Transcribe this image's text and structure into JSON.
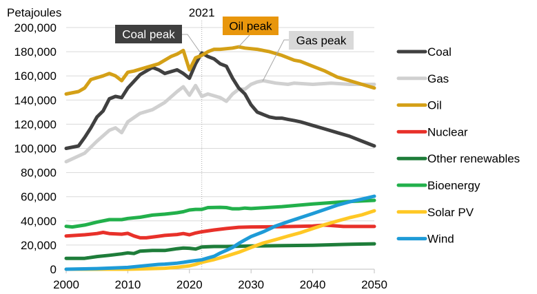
{
  "chart_data": {
    "type": "line",
    "title": "",
    "ylabel": "Petajoules",
    "xlabel": "",
    "xlim": [
      2000,
      2050
    ],
    "ylim": [
      0,
      200000
    ],
    "grid": "horizontal",
    "legend_position": "right",
    "x_ticks": [
      2000,
      2010,
      2020,
      2030,
      2040,
      2050
    ],
    "x_tick_labels": [
      "2000",
      "2010",
      "2020",
      "2030",
      "2040",
      "2050"
    ],
    "y_ticks": [
      0,
      20000,
      40000,
      60000,
      80000,
      100000,
      120000,
      140000,
      160000,
      180000,
      200000
    ],
    "y_tick_labels": [
      "0",
      "20,000",
      "40,000",
      "60,000",
      "80,000",
      "100,000",
      "120,000",
      "140,000",
      "160,000",
      "180,000",
      "200,000"
    ],
    "reference_line": {
      "x": 2022,
      "label": "2021",
      "style": "dotted"
    },
    "annotations": [
      {
        "label": "Coal peak",
        "series": "Coal",
        "x": 2022,
        "y": 179000,
        "box_color": "#3F3F3F",
        "text_color": "#FFFFFF"
      },
      {
        "label": "Oil peak",
        "series": "Oil",
        "x": 2028,
        "y": 184000,
        "box_color": "#E8960C",
        "text_color": "#000000"
      },
      {
        "label": "Gas peak",
        "series": "Gas",
        "x": 2031.5,
        "y": 155000,
        "box_color": "#D9D9D9",
        "text_color": "#000000"
      }
    ],
    "series": [
      {
        "name": "Coal",
        "color": "#404040",
        "x": [
          2000,
          2002,
          2003,
          2004,
          2005,
          2006,
          2007,
          2008,
          2009,
          2010,
          2012,
          2014,
          2015,
          2016,
          2018,
          2019,
          2020,
          2021,
          2022,
          2023,
          2024,
          2025,
          2026,
          2027,
          2028,
          2029,
          2030,
          2031,
          2032,
          2033,
          2034,
          2035,
          2036,
          2037,
          2038,
          2040,
          2042,
          2044,
          2046,
          2048,
          2050
        ],
        "values": [
          100000,
          102000,
          109000,
          117000,
          126000,
          131000,
          141000,
          143000,
          142000,
          150000,
          161000,
          167000,
          165000,
          162000,
          165000,
          162000,
          158000,
          170000,
          179000,
          176000,
          174000,
          170000,
          168000,
          158000,
          150000,
          145000,
          136000,
          130000,
          128000,
          126000,
          125000,
          125000,
          124000,
          123000,
          122000,
          119000,
          116000,
          113000,
          110000,
          106000,
          102000
        ]
      },
      {
        "name": "Gas",
        "color": "#D0D0D0",
        "x": [
          2000,
          2003,
          2005,
          2007,
          2008,
          2009,
          2010,
          2012,
          2014,
          2016,
          2018,
          2019,
          2020,
          2021,
          2022,
          2023,
          2025,
          2026,
          2027,
          2028,
          2029,
          2030,
          2031,
          2032,
          2034,
          2036,
          2037,
          2040,
          2043,
          2046,
          2050
        ],
        "values": [
          89000,
          96000,
          106000,
          115000,
          117000,
          113000,
          122000,
          129000,
          132000,
          138000,
          147000,
          151000,
          144000,
          152000,
          143000,
          145000,
          142000,
          139000,
          145000,
          149000,
          149000,
          153000,
          155000,
          156000,
          154000,
          153000,
          154000,
          153000,
          154000,
          153000,
          153000
        ]
      },
      {
        "name": "Oil",
        "color": "#D4A017",
        "x": [
          2000,
          2002,
          2003,
          2004,
          2006,
          2007,
          2008,
          2009,
          2010,
          2011,
          2013,
          2015,
          2017,
          2018,
          2019,
          2020,
          2021,
          2022,
          2023,
          2024,
          2025,
          2027,
          2028,
          2029,
          2031,
          2033,
          2035,
          2037,
          2038,
          2040,
          2042,
          2044,
          2046,
          2048,
          2050
        ],
        "values": [
          145000,
          147000,
          150000,
          157000,
          160000,
          162000,
          160000,
          156000,
          163000,
          164000,
          167000,
          170000,
          176000,
          178000,
          181000,
          165000,
          175000,
          177000,
          180000,
          182000,
          182000,
          183000,
          184000,
          183000,
          182000,
          180000,
          177000,
          173000,
          172000,
          168000,
          164000,
          159000,
          156000,
          153000,
          150000
        ]
      },
      {
        "name": "Nuclear",
        "color": "#E8312A",
        "x": [
          2000,
          2003,
          2005,
          2006,
          2007,
          2009,
          2010,
          2011,
          2012,
          2013,
          2015,
          2016,
          2018,
          2019,
          2020,
          2021,
          2022,
          2024,
          2026,
          2028,
          2030,
          2035,
          2040,
          2042,
          2045,
          2050
        ],
        "values": [
          27500,
          28500,
          29500,
          30500,
          29500,
          29000,
          29700,
          27500,
          26000,
          26000,
          27300,
          28000,
          28700,
          29500,
          28500,
          30000,
          31000,
          32500,
          33700,
          34700,
          35000,
          35200,
          35800,
          36500,
          35400,
          35400
        ]
      },
      {
        "name": "Other renewables",
        "color": "#1E7D3A",
        "x": [
          2000,
          2003,
          2005,
          2007,
          2009,
          2010,
          2011,
          2012,
          2014,
          2016,
          2018,
          2019,
          2020,
          2021,
          2022,
          2024,
          2026,
          2030,
          2035,
          2040,
          2045,
          2050
        ],
        "values": [
          9000,
          9000,
          10500,
          11500,
          12700,
          13500,
          13000,
          15000,
          15500,
          15500,
          17000,
          17500,
          17300,
          16700,
          18400,
          18800,
          18800,
          19200,
          19500,
          19800,
          20500,
          21000
        ]
      },
      {
        "name": "Bioenergy",
        "color": "#22B04B",
        "x": [
          2000,
          2001,
          2003,
          2005,
          2007,
          2009,
          2010,
          2012,
          2014,
          2016,
          2018,
          2019,
          2020,
          2021,
          2022,
          2023,
          2025,
          2026,
          2027,
          2028,
          2029,
          2030,
          2035,
          2040,
          2045,
          2050
        ],
        "values": [
          35500,
          35000,
          36500,
          39000,
          41000,
          41000,
          42000,
          43000,
          44800,
          45600,
          46700,
          47600,
          49000,
          49500,
          49500,
          51000,
          51200,
          51000,
          50000,
          50000,
          50600,
          50200,
          51800,
          54000,
          55800,
          57000
        ]
      },
      {
        "name": "Solar PV",
        "color": "#FFC825",
        "x": [
          2000,
          2010,
          2012,
          2014,
          2016,
          2018,
          2020,
          2021,
          2022,
          2024,
          2026,
          2028,
          2030,
          2032,
          2034,
          2036,
          2038,
          2040,
          2042,
          2044,
          2046,
          2048,
          2050
        ],
        "values": [
          0,
          0,
          200,
          500,
          800,
          1600,
          2800,
          4000,
          5700,
          8000,
          10800,
          14000,
          18000,
          21700,
          24500,
          27400,
          30200,
          33600,
          37000,
          39900,
          42700,
          45000,
          48400
        ]
      },
      {
        "name": "Wind",
        "color": "#1E9BD7",
        "x": [
          2000,
          2005,
          2010,
          2013,
          2015,
          2016,
          2018,
          2019,
          2020,
          2022,
          2023,
          2024,
          2025,
          2026,
          2027,
          2028,
          2029,
          2030,
          2032,
          2034,
          2036,
          2038,
          2040,
          2042,
          2044,
          2046,
          2048,
          2050
        ],
        "values": [
          0,
          500,
          1500,
          3000,
          4000,
          4200,
          5000,
          5700,
          6500,
          7800,
          9300,
          10700,
          13400,
          15600,
          18000,
          21300,
          24300,
          27000,
          31000,
          35800,
          39300,
          42700,
          46000,
          49500,
          53000,
          55800,
          58000,
          60400
        ]
      }
    ]
  }
}
